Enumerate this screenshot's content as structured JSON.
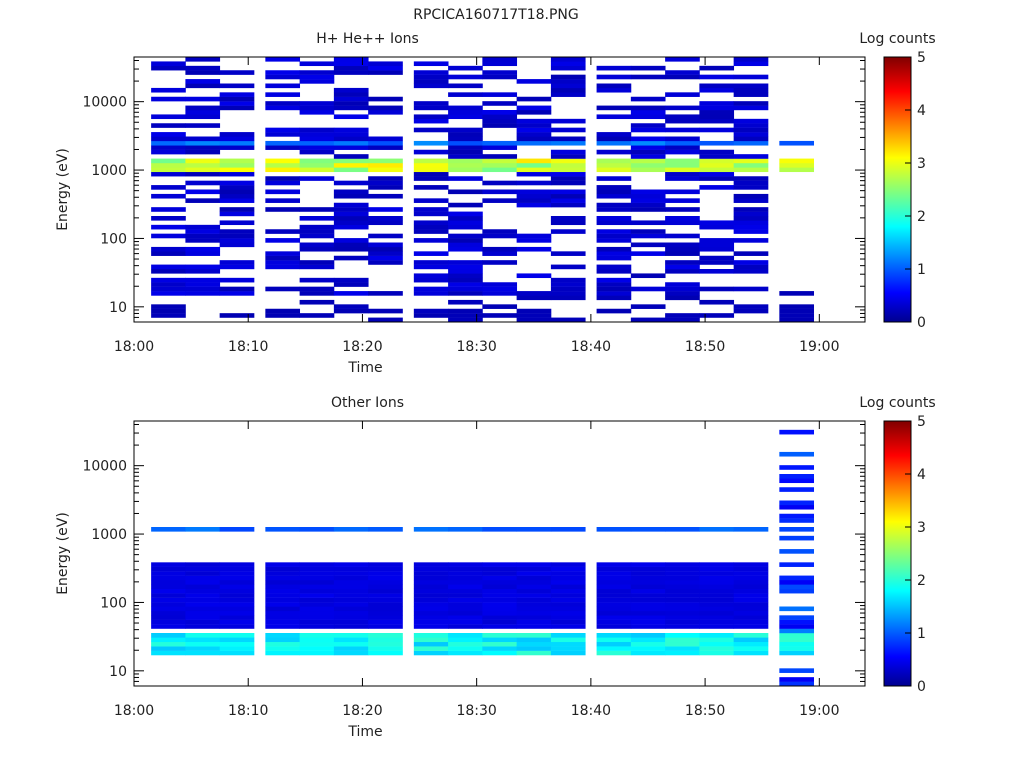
{
  "figure_title": "RPCICA160717T18.PNG",
  "chart_data": [
    {
      "type": "heatmap",
      "title": "H+ He++ Ions",
      "xlabel": "Time",
      "ylabel": "Energy (eV)",
      "x_ticks": [
        "18:00",
        "18:10",
        "18:20",
        "18:30",
        "18:40",
        "18:50",
        "19:00"
      ],
      "x_range": [
        "18:00",
        "19:04"
      ],
      "y_scale": "log",
      "y_ticks": [
        "10",
        "100",
        "1000",
        "10000"
      ],
      "y_range": [
        6,
        45000
      ],
      "colorbar": {
        "label": "Log counts",
        "range": [
          0,
          5
        ],
        "ticks": [
          "0",
          "1",
          "2",
          "3",
          "4",
          "5"
        ]
      },
      "columns": [
        "18:03",
        "18:06",
        "18:09",
        "18:13",
        "18:16",
        "18:19",
        "18:22",
        "18:26",
        "18:29",
        "18:32",
        "18:35",
        "18:38",
        "18:42",
        "18:45",
        "18:48",
        "18:51",
        "18:54",
        "18:58"
      ],
      "features": [
        {
          "energy_range_eV": [
            1000,
            1400
          ],
          "log_counts": 2.8,
          "description_columns": "18:03-18:58"
        },
        {
          "energy_range_eV": [
            2200,
            2700
          ],
          "log_counts": 1.1,
          "description_columns": "18:03-18:58"
        },
        {
          "energy_range_eV": [
            15,
            45000
          ],
          "log_counts": 0.3,
          "description_columns": "18:03-18:55"
        },
        {
          "energy_range_eV": [
            6,
            20
          ],
          "log_counts": 0.2,
          "description_columns": "scattered"
        }
      ]
    },
    {
      "type": "heatmap",
      "title": "Other Ions",
      "xlabel": "Time",
      "ylabel": "Energy (eV)",
      "x_ticks": [
        "18:00",
        "18:10",
        "18:20",
        "18:30",
        "18:40",
        "18:50",
        "19:00"
      ],
      "x_range": [
        "18:00",
        "19:04"
      ],
      "y_scale": "log",
      "y_ticks": [
        "10",
        "100",
        "1000",
        "10000"
      ],
      "y_range": [
        6,
        45000
      ],
      "colorbar": {
        "label": "Log counts",
        "range": [
          0,
          5
        ],
        "ticks": [
          "0",
          "1",
          "2",
          "3",
          "4",
          "5"
        ]
      },
      "columns": [
        "18:03",
        "18:06",
        "18:09",
        "18:13",
        "18:16",
        "18:19",
        "18:22",
        "18:26",
        "18:29",
        "18:32",
        "18:35",
        "18:38",
        "18:42",
        "18:45",
        "18:48",
        "18:51",
        "18:54",
        "18:58"
      ],
      "features": [
        {
          "energy_range_eV": [
            1050,
            1300
          ],
          "log_counts": 1.0,
          "description_columns": "18:03-18:58"
        },
        {
          "energy_range_eV": [
            18,
            35
          ],
          "log_counts": 1.8,
          "description_columns": "18:03-18:58"
        },
        {
          "energy_range_eV": [
            40,
            400
          ],
          "log_counts": 0.4,
          "description_columns": "18:03-18:55"
        },
        {
          "energy_range_eV": [
            6,
            40000
          ],
          "log_counts": 0.8,
          "description_columns": "18:58"
        }
      ]
    }
  ]
}
